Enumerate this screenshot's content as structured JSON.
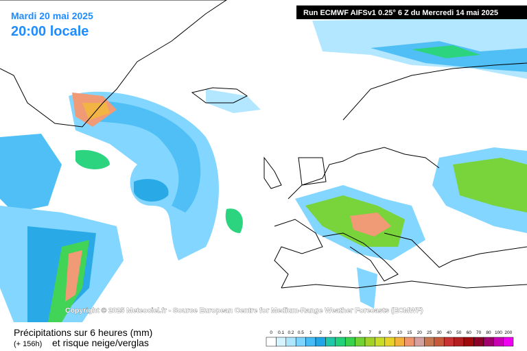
{
  "header": {
    "date": "Mardi 20 mai 2025",
    "time": "20:00 locale",
    "run": "Run ECMWF AIFSv1 0.25° 6 Z du Mercredi 14 mai 2025"
  },
  "copyright": "Copyright © 2025 Meteociel.fr - Source European Centre for Medium-Range Weather Forecasts (ECMWF)",
  "footer": {
    "title": "Précipitations sur 6 heures (mm)",
    "lead": "(+ 156h)",
    "subtitle": "et risque neige/verglas"
  },
  "legend": [
    {
      "label": 0,
      "color": "#ffffff"
    },
    {
      "label": 0.1,
      "color": "#d4f4ff"
    },
    {
      "label": 0.2,
      "color": "#aee6ff"
    },
    {
      "label": 0.5,
      "color": "#7cd4ff"
    },
    {
      "label": 1,
      "color": "#46bcf6"
    },
    {
      "label": 2,
      "color": "#1ea6e6"
    },
    {
      "label": 3,
      "color": "#1ec8a8"
    },
    {
      "label": 4,
      "color": "#22d27a"
    },
    {
      "label": 5,
      "color": "#38d24e"
    },
    {
      "label": 6,
      "color": "#72d232"
    },
    {
      "label": 7,
      "color": "#a2d228"
    },
    {
      "label": 8,
      "color": "#c8dc28"
    },
    {
      "label": 9,
      "color": "#e8d22a"
    },
    {
      "label": 10,
      "color": "#f2b23c"
    },
    {
      "label": 15,
      "color": "#f0966e"
    },
    {
      "label": 20,
      "color": "#d4a0a0"
    },
    {
      "label": 25,
      "color": "#c87850"
    },
    {
      "label": 30,
      "color": "#c85a3c"
    },
    {
      "label": 40,
      "color": "#c83232"
    },
    {
      "label": 50,
      "color": "#b41e1e"
    },
    {
      "label": 60,
      "color": "#a00a0a"
    },
    {
      "label": 70,
      "color": "#8c0028"
    },
    {
      "label": 80,
      "color": "#a0006e"
    },
    {
      "label": 100,
      "color": "#c800b4"
    },
    {
      "label": 200,
      "color": "#f000f0"
    }
  ]
}
